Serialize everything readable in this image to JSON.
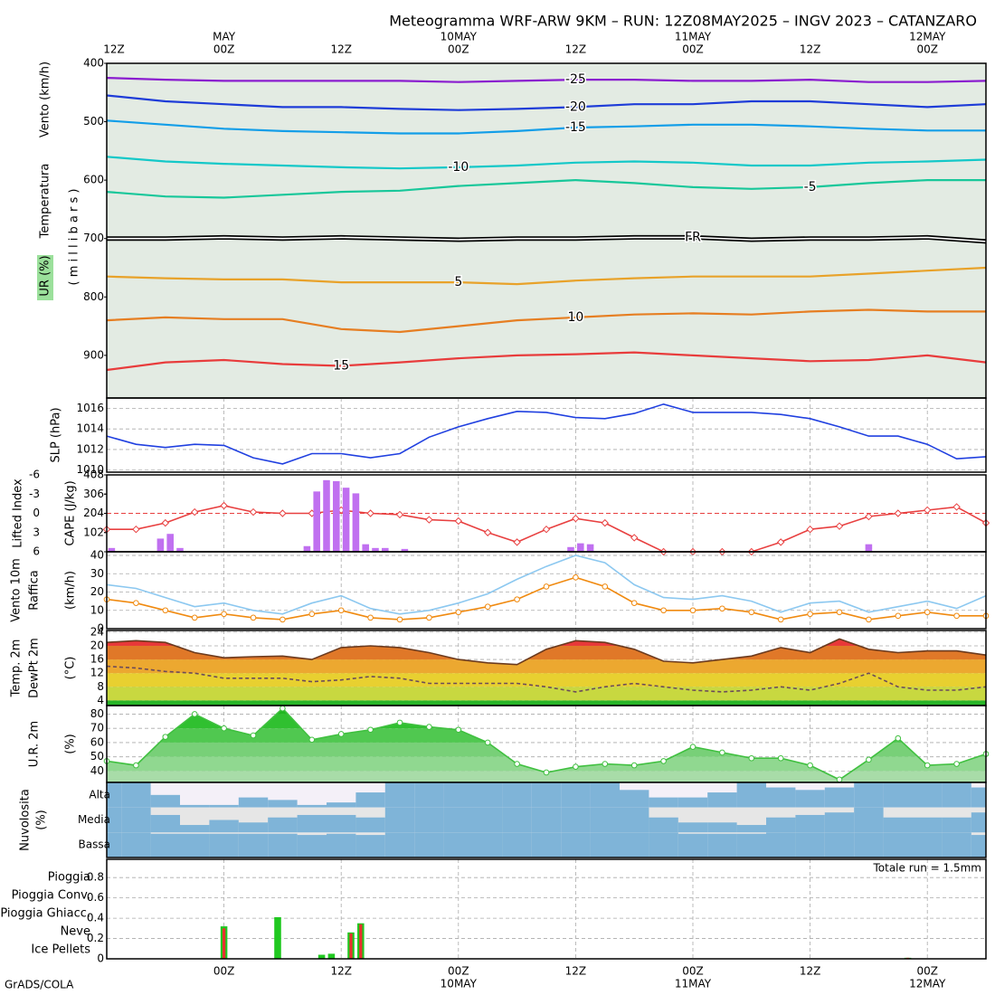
{
  "title": "Meteogramma WRF-ARW 9KM – RUN: 12Z08MAY2025 – INGV 2023 – CATANZARO",
  "credit": "GrADS/COLA",
  "time_axis": {
    "xlim": [
      0,
      90
    ],
    "xticks": [
      {
        "value": 0,
        "label": "12Z"
      },
      {
        "value": 12,
        "label": "00Z"
      },
      {
        "value": 24,
        "label": "12Z"
      },
      {
        "value": 36,
        "label": "00Z"
      },
      {
        "value": 48,
        "label": "12Z"
      },
      {
        "value": 60,
        "label": "00Z"
      },
      {
        "value": 72,
        "label": "12Z"
      },
      {
        "value": 84,
        "label": "00Z"
      }
    ],
    "dates": [
      {
        "value": 12,
        "label": "MAY"
      },
      {
        "value": 36,
        "label": "10MAY"
      },
      {
        "value": 60,
        "label": "11MAY"
      },
      {
        "value": 84,
        "label": "12MAY"
      }
    ]
  },
  "chart_data": [
    {
      "type": "line",
      "labels_on_line": true,
      "ylabels": [
        {
          "text": "Vento (km/h)",
          "color": "#000000"
        },
        {
          "text": "Temperatura",
          "color": "rainbow"
        },
        {
          "text": "UR (%)",
          "color": "#1a8a1a"
        },
        {
          "text": "( m i l l i b a r s )",
          "color": "#000000"
        }
      ],
      "ylim": [
        973,
        400
      ],
      "yticks": [
        400,
        500,
        600,
        700,
        800,
        900
      ],
      "x": [
        0,
        6,
        12,
        18,
        24,
        30,
        36,
        42,
        48,
        54,
        60,
        66,
        72,
        78,
        84,
        90
      ],
      "series": [
        {
          "name": "-25",
          "color": "#8a1ccf",
          "values": [
            425,
            428,
            430,
            430,
            430,
            430,
            432,
            430,
            428,
            428,
            430,
            430,
            428,
            432,
            432,
            430
          ]
        },
        {
          "name": "-20",
          "color": "#1e3cd8",
          "values": [
            455,
            465,
            470,
            475,
            475,
            478,
            480,
            478,
            475,
            470,
            470,
            465,
            465,
            470,
            475,
            470
          ]
        },
        {
          "name": "-15",
          "color": "#139ee8",
          "values": [
            498,
            505,
            512,
            516,
            518,
            520,
            520,
            516,
            510,
            508,
            505,
            505,
            508,
            512,
            515,
            515
          ]
        },
        {
          "name": "-10",
          "color": "#14c8c8",
          "values": [
            560,
            568,
            572,
            575,
            578,
            580,
            578,
            575,
            570,
            568,
            570,
            575,
            575,
            570,
            568,
            565
          ]
        },
        {
          "name": "-5",
          "color": "#18c79a",
          "values": [
            620,
            628,
            630,
            625,
            620,
            618,
            610,
            605,
            600,
            605,
            612,
            615,
            612,
            605,
            600,
            600
          ]
        },
        {
          "name": "FR",
          "color": "#000000",
          "style": "double",
          "values": [
            700,
            700,
            698,
            700,
            698,
            700,
            702,
            700,
            700,
            698,
            698,
            702,
            700,
            700,
            698,
            705
          ]
        },
        {
          "name": "5",
          "color": "#e8a22a",
          "values": [
            765,
            768,
            770,
            770,
            775,
            775,
            775,
            778,
            772,
            768,
            765,
            765,
            765,
            760,
            755,
            750
          ]
        },
        {
          "name": "10",
          "color": "#e67e22",
          "values": [
            840,
            835,
            838,
            838,
            855,
            860,
            850,
            840,
            835,
            830,
            828,
            830,
            825,
            822,
            825,
            825
          ]
        },
        {
          "name": "15",
          "color": "#e83c3c",
          "values": [
            925,
            912,
            908,
            915,
            918,
            912,
            905,
            900,
            898,
            895,
            900,
            905,
            910,
            908,
            900,
            912
          ]
        }
      ]
    },
    {
      "type": "line",
      "grid": true,
      "ylim": [
        1009.8,
        1017
      ],
      "yticks": [
        1010,
        1012,
        1014,
        1016
      ],
      "x": [
        0,
        3,
        6,
        9,
        12,
        15,
        18,
        21,
        24,
        27,
        30,
        33,
        36,
        39,
        42,
        45,
        48,
        51,
        54,
        57,
        60,
        63,
        66,
        69,
        72,
        75,
        78,
        81,
        84,
        87,
        90
      ],
      "series": [
        {
          "name": "SLP (hPa)",
          "color": "#2040e0",
          "values": [
            1013.3,
            1012.5,
            1012.2,
            1012.5,
            1012.4,
            1011.2,
            1010.6,
            1011.6,
            1011.6,
            1011.2,
            1011.6,
            1013.2,
            1014.2,
            1015.0,
            1015.7,
            1015.6,
            1015.1,
            1015.0,
            1015.5,
            1016.4,
            1015.6,
            1015.6,
            1015.6,
            1015.4,
            1015.0,
            1014.2,
            1013.3,
            1013.3,
            1012.5,
            1011.1,
            1011.3
          ]
        }
      ]
    },
    {
      "type": "bar_line",
      "grid": true,
      "ylim": [
        6,
        -6
      ],
      "yticks": [
        -6,
        -3,
        0,
        3,
        6
      ],
      "reference_line": 0,
      "y2lim": [
        0,
        408
      ],
      "y2ticks": [
        102,
        204,
        306,
        408
      ],
      "x": [
        0,
        3,
        6,
        9,
        12,
        15,
        18,
        21,
        24,
        27,
        30,
        33,
        36,
        39,
        42,
        45,
        48,
        51,
        54,
        57,
        60,
        63,
        66,
        69,
        72,
        75,
        78,
        81,
        84,
        87,
        90
      ],
      "series": [
        {
          "name": "Lifted Index",
          "color": "#e84040",
          "marker": "diamond",
          "values": [
            2.5,
            2.5,
            1.5,
            -0.2,
            -1.2,
            -0.2,
            0,
            0,
            -0.5,
            0,
            0.2,
            1,
            1.2,
            3,
            4.5,
            2.5,
            0.8,
            1.5,
            3.8,
            6,
            6,
            6,
            6,
            4.5,
            2.5,
            2,
            0.5,
            0,
            -0.5,
            -1,
            1.5
          ]
        },
        {
          "name": "CAPE (J/kg)",
          "color": "#c070f0",
          "axis": "y2",
          "x": [
            0.5,
            5.5,
            6.5,
            7.5,
            20.5,
            21.5,
            22.5,
            23.5,
            24.5,
            25.5,
            26.5,
            27.5,
            28.5,
            30.5,
            47.5,
            48.5,
            49.5,
            78
          ],
          "values": [
            20,
            70,
            95,
            20,
            30,
            320,
            380,
            375,
            340,
            310,
            40,
            20,
            20,
            15,
            25,
            45,
            40,
            40
          ]
        }
      ]
    },
    {
      "type": "line",
      "grid": true,
      "ylabels": [
        {
          "text": "(km/h)",
          "color": "#000000"
        }
      ],
      "ylim": [
        0,
        42
      ],
      "yticks": [
        0,
        10,
        20,
        30,
        40
      ],
      "x": [
        0,
        3,
        6,
        9,
        12,
        15,
        18,
        21,
        24,
        27,
        30,
        33,
        36,
        39,
        42,
        45,
        48,
        51,
        54,
        57,
        60,
        63,
        66,
        69,
        72,
        75,
        78,
        81,
        84,
        87,
        90
      ],
      "series": [
        {
          "name": "Vento 10m",
          "color": "#f08a10",
          "marker": "circle",
          "values": [
            16,
            14,
            10,
            6,
            8,
            6,
            5,
            8,
            10,
            6,
            5,
            6,
            9,
            12,
            16,
            23,
            28,
            23,
            14,
            10,
            10,
            11,
            9,
            5,
            8,
            9,
            5,
            7,
            9,
            7,
            7
          ]
        },
        {
          "name": "Raffica",
          "color": "#8cc8f0",
          "values": [
            24,
            22,
            17,
            12,
            14,
            10,
            8,
            14,
            18,
            11,
            8,
            10,
            14,
            19,
            27,
            34,
            40,
            36,
            24,
            17,
            16,
            18,
            15,
            9,
            14,
            15,
            9,
            12,
            15,
            11,
            18
          ]
        }
      ]
    },
    {
      "type": "area",
      "grid": true,
      "ylabels": [
        {
          "text": "(°C)",
          "color": "#000000"
        }
      ],
      "ylim": [
        2.5,
        24.5
      ],
      "yticks": [
        4,
        8,
        12,
        16,
        20,
        24
      ],
      "band_colors": [
        "#28b428",
        "#c8d840",
        "#e8d030",
        "#eca830",
        "#e07828",
        "#e83838"
      ],
      "x": [
        0,
        3,
        6,
        9,
        12,
        15,
        18,
        21,
        24,
        27,
        30,
        33,
        36,
        39,
        42,
        45,
        48,
        51,
        54,
        57,
        60,
        63,
        66,
        69,
        72,
        75,
        78,
        81,
        84,
        87,
        90
      ],
      "series": [
        {
          "name": "Temp. 2m",
          "color": "#6b3a1e",
          "values": [
            21,
            21.5,
            21,
            18,
            16.5,
            16.8,
            17,
            16,
            19.5,
            20,
            19.5,
            18,
            16,
            15,
            14.5,
            19,
            21.5,
            21,
            19,
            15.5,
            15,
            16,
            17,
            19.5,
            18,
            22,
            19,
            18,
            18.5,
            18.5,
            17.3
          ]
        },
        {
          "name": "DewPt 2m",
          "color": "#6b4a5a",
          "style": "dashed",
          "values": [
            14,
            13.5,
            12.5,
            12,
            10.5,
            10.5,
            10.5,
            9.5,
            10,
            11,
            10.5,
            9,
            9,
            9,
            9,
            8,
            6.5,
            8,
            9,
            8,
            7,
            6.5,
            7,
            8,
            7,
            9,
            12,
            8,
            7,
            7,
            8
          ]
        }
      ]
    },
    {
      "type": "area",
      "grid": true,
      "ylabels": [
        {
          "text": "(%)",
          "color": "#000000"
        }
      ],
      "ylim": [
        32,
        86
      ],
      "yticks": [
        40,
        50,
        60,
        70,
        80
      ],
      "band_colors": [
        "#a8dca8",
        "#90d890",
        "#78d078",
        "#50c850",
        "#30c030",
        "#20b820"
      ],
      "x": [
        0,
        3,
        6,
        9,
        12,
        15,
        18,
        21,
        24,
        27,
        30,
        33,
        36,
        39,
        42,
        45,
        48,
        51,
        54,
        57,
        60,
        63,
        66,
        69,
        72,
        75,
        78,
        81,
        84,
        87,
        90
      ],
      "series": [
        {
          "name": "U.R. 2m",
          "color": "#40c040",
          "marker": "circle",
          "values": [
            47,
            44,
            64,
            80,
            70,
            65,
            84,
            62,
            66,
            69,
            74,
            71,
            69,
            60,
            45,
            39,
            43,
            45,
            44,
            47,
            57,
            53,
            49,
            49,
            44,
            34,
            48,
            63,
            44,
            45,
            52
          ]
        }
      ]
    },
    {
      "type": "cloud_layers",
      "ylabels": [
        {
          "text": "Nuvolosita",
          "color": "#2a78c0"
        },
        {
          "text": "(%)",
          "color": "#000000"
        }
      ],
      "color": "#7fb4d8",
      "x": [
        0,
        3,
        6,
        9,
        12,
        15,
        18,
        21,
        24,
        27,
        30,
        33,
        36,
        39,
        42,
        45,
        48,
        51,
        54,
        57,
        60,
        63,
        66,
        69,
        72,
        75,
        78,
        81,
        84,
        87,
        90
      ],
      "layers": [
        {
          "name": "Alta",
          "values": [
            100,
            100,
            50,
            10,
            10,
            40,
            30,
            10,
            20,
            60,
            100,
            100,
            100,
            100,
            100,
            100,
            100,
            100,
            70,
            40,
            40,
            60,
            100,
            80,
            70,
            80,
            100,
            100,
            100,
            100,
            80
          ]
        },
        {
          "name": "Media",
          "values": [
            100,
            100,
            70,
            30,
            50,
            40,
            60,
            70,
            70,
            60,
            100,
            100,
            100,
            100,
            100,
            100,
            100,
            100,
            100,
            60,
            40,
            40,
            30,
            60,
            70,
            80,
            100,
            60,
            60,
            60,
            80
          ]
        },
        {
          "name": "Bassa",
          "values": [
            100,
            100,
            95,
            95,
            95,
            95,
            95,
            90,
            95,
            90,
            100,
            100,
            100,
            100,
            100,
            100,
            100,
            100,
            100,
            100,
            95,
            95,
            95,
            100,
            100,
            100,
            100,
            100,
            100,
            100,
            90
          ]
        }
      ]
    },
    {
      "type": "bar",
      "grid": true,
      "annotation": "Totale run = 1.5mm",
      "ylim": [
        0,
        0.98
      ],
      "yticks": [
        0,
        0.2,
        0.4,
        0.6,
        0.8
      ],
      "x": [
        12,
        17.5,
        22,
        23,
        25,
        26,
        82
      ],
      "series": [
        {
          "name": "Pioggia",
          "color": "#20c820",
          "values": [
            0.32,
            0.41,
            0.04,
            0.05,
            0.26,
            0.35,
            0.01
          ]
        },
        {
          "name": "Pioggia Conv.",
          "color": "#e83030",
          "values": [
            0.3,
            0,
            0,
            0,
            0.25,
            0.34,
            0.01
          ]
        },
        {
          "name": "Pioggia Ghiacc.",
          "color": "#f08020",
          "values": [
            0,
            0,
            0,
            0,
            0,
            0,
            0
          ]
        },
        {
          "name": "Neve",
          "color": "#2020e0",
          "values": [
            0,
            0,
            0,
            0,
            0,
            0,
            0
          ]
        },
        {
          "name": "Ice Pellets",
          "color": "#20c0d0",
          "values": [
            0,
            0,
            0,
            0,
            0,
            0,
            0
          ]
        }
      ]
    }
  ]
}
